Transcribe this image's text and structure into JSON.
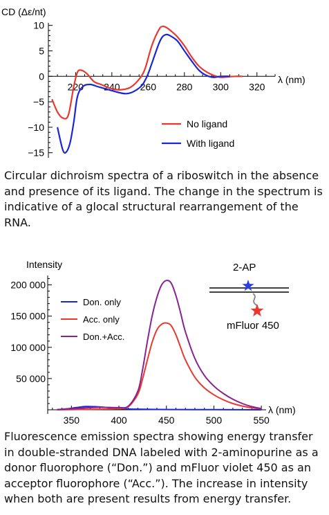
{
  "chart_data": [
    {
      "type": "line",
      "ylabel": "CD (Δε/nt)",
      "xlabel": "λ (nm)",
      "xlim": [
        205,
        330
      ],
      "ylim": [
        -16,
        10.5
      ],
      "xticks": [
        220,
        240,
        260,
        280,
        300,
        320
      ],
      "yticks": [
        10,
        5,
        0,
        -5,
        -10,
        -15
      ],
      "legend_position": "lower-right",
      "series": [
        {
          "name": "No ligand",
          "color": "#e8392f",
          "x": [
            207,
            210,
            213,
            216,
            219,
            221,
            223,
            226,
            230,
            234,
            238,
            242,
            246,
            250,
            254,
            258,
            262,
            266,
            268,
            270,
            273,
            276,
            280,
            284,
            288,
            292,
            296,
            300,
            304,
            308,
            312
          ],
          "y": [
            -4.5,
            -7.0,
            -8.2,
            -7.6,
            -2.0,
            0.8,
            1.2,
            0.6,
            -1.0,
            -1.6,
            -2.2,
            -2.6,
            -2.6,
            -2.2,
            -1.0,
            1.2,
            6.0,
            9.2,
            9.8,
            9.6,
            8.8,
            7.8,
            6.0,
            3.8,
            2.0,
            0.9,
            0.2,
            -0.2,
            -0.1,
            0.0,
            0.0
          ]
        },
        {
          "name": "With ligand",
          "color": "#1726d6",
          "x": [
            210,
            213,
            215,
            217,
            219,
            221,
            224,
            228,
            232,
            236,
            240,
            244,
            248,
            252,
            256,
            258,
            260,
            262,
            266,
            268,
            270,
            272,
            276,
            280,
            284,
            288,
            292,
            296,
            300,
            305
          ],
          "y": [
            -10.0,
            -14.5,
            -14.8,
            -13.0,
            -9.0,
            -4.0,
            -2.0,
            -1.6,
            -2.0,
            -2.4,
            -2.8,
            -3.2,
            -3.4,
            -3.0,
            -2.0,
            -1.0,
            0.5,
            2.5,
            6.5,
            7.8,
            8.2,
            8.0,
            7.0,
            5.0,
            3.0,
            1.2,
            0.2,
            -0.2,
            0.0,
            0.0
          ]
        }
      ]
    },
    {
      "type": "line",
      "ylabel": "Intensity",
      "xlabel": "λ (nm)",
      "xlim": [
        325,
        555
      ],
      "ylim": [
        0,
        215000
      ],
      "xticks": [
        350,
        400,
        450,
        500,
        550
      ],
      "yticks": [
        200000,
        150000,
        100000,
        50000
      ],
      "ytick_labels": [
        "200 000",
        "150 000",
        "100 000",
        "50 000"
      ],
      "legend_position": "top-left",
      "series": [
        {
          "name": "Don. only",
          "color": "#1726d6",
          "x": [
            335,
            345,
            355,
            365,
            375,
            385,
            395,
            405,
            415,
            425,
            440,
            460,
            480,
            500,
            520,
            540,
            550
          ],
          "y": [
            400,
            1500,
            3500,
            5200,
            5000,
            4000,
            2600,
            1500,
            1000,
            800,
            600,
            400,
            300,
            200,
            100,
            50,
            0
          ]
        },
        {
          "name": "Acc. only",
          "color": "#e8392f",
          "x": [
            335,
            360,
            380,
            400,
            410,
            420,
            425,
            430,
            435,
            440,
            445,
            450,
            455,
            460,
            465,
            470,
            480,
            490,
            500,
            510,
            520,
            530,
            540,
            550
          ],
          "y": [
            0,
            500,
            1000,
            2000,
            5000,
            25000,
            50000,
            80000,
            108000,
            128000,
            137000,
            139000,
            135000,
            120000,
            100000,
            80000,
            52000,
            35000,
            24000,
            16000,
            10000,
            6000,
            3000,
            1500
          ]
        },
        {
          "name": "Don.+Acc.",
          "color": "#8a2191",
          "x": [
            335,
            360,
            380,
            400,
            410,
            420,
            425,
            430,
            435,
            440,
            445,
            450,
            455,
            460,
            465,
            470,
            480,
            490,
            500,
            510,
            520,
            530,
            540,
            550
          ],
          "y": [
            300,
            2500,
            4000,
            3500,
            6000,
            30000,
            65000,
            110000,
            150000,
            180000,
            200000,
            207000,
            203000,
            183000,
            155000,
            125000,
            82000,
            55000,
            38000,
            26000,
            17000,
            10000,
            5000,
            2000
          ]
        }
      ]
    }
  ],
  "inset": {
    "top_label": "2-AP",
    "bottom_label": "mFluor 450"
  },
  "captions": {
    "cd": "Circular dichroism spectra of a riboswitch in the absence and presence of its ligand. The change in the spectrum is indicative of a glocal structural rearrangement of the RNA.",
    "fluor": "Fluorescence emission spectra showing energy transfer in double-stranded DNA labeled with 2-aminopurine as a donor fluorophore (“Don.”) and mFluor violet 450 as an acceptor fluorophore (“Acc.”). The increase in intensity when both are present results from energy transfer."
  }
}
